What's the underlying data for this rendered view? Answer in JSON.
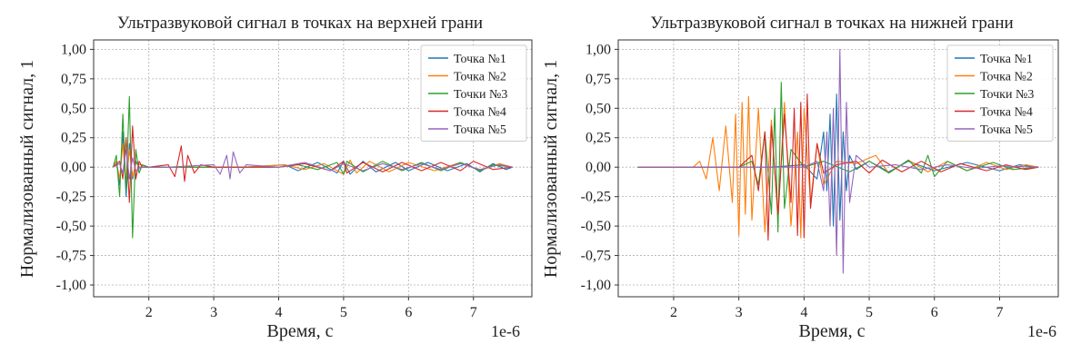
{
  "colors": {
    "series": [
      "#1f77b4",
      "#ff7f0e",
      "#2ca02c",
      "#d62728",
      "#9467bd"
    ],
    "grid": "#b0b0b0",
    "axes": "#333333",
    "legend_border": "#cccccc"
  },
  "chart_data": [
    {
      "type": "line",
      "title": "Ультразвуковой сигнал в точках на верхней грани",
      "xlabel": "Время, с",
      "ylabel": "Нормализованный сигнал, 1",
      "x_offset_label": "1e-6",
      "xlim": [
        1.15,
        7.9
      ],
      "ylim": [
        -1.1,
        1.08
      ],
      "xticks": [
        2,
        3,
        4,
        5,
        6,
        7
      ],
      "yticks": [
        -1.0,
        -0.75,
        -0.5,
        -0.25,
        0.0,
        0.25,
        0.5,
        0.75,
        1.0
      ],
      "xtick_labels": [
        "2",
        "3",
        "4",
        "5",
        "6",
        "7"
      ],
      "ytick_labels": [
        "-1,00",
        "-0,75",
        "-0,50",
        "-0,25",
        "0,00",
        "0,25",
        "0,50",
        "0,75",
        "1,00"
      ],
      "grid": true,
      "legend_position": "top-right",
      "series": [
        {
          "name": "Точка №1",
          "x": [
            1.45,
            1.5,
            1.55,
            1.6,
            1.65,
            1.7,
            1.75,
            1.8,
            1.85,
            2.0,
            2.5,
            3.0,
            3.5,
            4.1,
            4.3,
            4.6,
            4.9,
            5.0,
            5.1,
            5.3,
            5.5,
            5.8,
            6.0,
            6.3,
            6.6,
            6.9,
            7.1,
            7.3,
            7.5,
            7.6
          ],
          "values": [
            0.0,
            0.05,
            -0.15,
            0.3,
            -0.25,
            0.2,
            -0.1,
            0.05,
            0.0,
            0.0,
            0.0,
            0.0,
            0.0,
            0.02,
            -0.03,
            0.04,
            -0.05,
            0.05,
            -0.06,
            0.05,
            -0.04,
            0.04,
            -0.03,
            0.04,
            -0.03,
            0.03,
            -0.04,
            0.03,
            -0.02,
            0.0
          ]
        },
        {
          "name": "Точка №2",
          "x": [
            1.45,
            1.5,
            1.55,
            1.6,
            1.65,
            1.7,
            1.75,
            1.8,
            2.0,
            2.5,
            3.0,
            3.5,
            4.1,
            4.4,
            4.7,
            5.0,
            5.1,
            5.2,
            5.4,
            5.7,
            6.0,
            6.4,
            6.8,
            7.1,
            7.4,
            7.6
          ],
          "values": [
            0.0,
            0.05,
            -0.1,
            0.2,
            -0.15,
            0.15,
            -0.08,
            0.03,
            0.0,
            0.0,
            0.0,
            0.0,
            0.02,
            -0.02,
            0.03,
            -0.06,
            0.06,
            -0.05,
            0.05,
            -0.04,
            0.04,
            -0.03,
            0.04,
            -0.03,
            0.03,
            0.0
          ]
        },
        {
          "name": "Точки №3",
          "x": [
            1.45,
            1.5,
            1.55,
            1.6,
            1.65,
            1.7,
            1.75,
            1.8,
            1.85,
            1.9,
            2.0,
            2.5,
            3.0,
            3.5,
            4.0,
            4.3,
            4.6,
            4.9,
            5.0,
            5.05,
            5.3,
            5.6,
            5.9,
            6.2,
            6.5,
            6.8,
            7.1,
            7.3,
            7.6
          ],
          "values": [
            0.0,
            0.1,
            -0.25,
            0.45,
            -0.2,
            0.6,
            -0.6,
            0.15,
            -0.05,
            0.02,
            0.0,
            0.0,
            0.0,
            0.0,
            0.0,
            0.02,
            -0.02,
            0.04,
            -0.06,
            0.05,
            -0.04,
            0.05,
            -0.03,
            0.04,
            -0.03,
            0.04,
            -0.03,
            0.02,
            0.0
          ]
        },
        {
          "name": "Точка №4",
          "x": [
            1.45,
            1.55,
            1.6,
            1.65,
            1.7,
            1.75,
            1.8,
            1.85,
            1.9,
            2.0,
            2.3,
            2.4,
            2.5,
            2.55,
            2.6,
            2.7,
            2.8,
            3.0,
            4.0,
            4.4,
            4.8,
            5.0,
            5.05,
            5.3,
            5.6,
            5.9,
            6.2,
            6.5,
            6.8,
            7.0,
            7.3,
            7.6
          ],
          "values": [
            0.0,
            0.05,
            -0.1,
            0.25,
            -0.3,
            0.35,
            -0.1,
            0.05,
            0.0,
            0.0,
            0.02,
            -0.08,
            0.18,
            -0.12,
            0.1,
            -0.05,
            0.02,
            0.0,
            0.0,
            0.03,
            -0.03,
            0.05,
            -0.05,
            0.04,
            -0.04,
            0.04,
            -0.03,
            0.04,
            -0.03,
            0.05,
            -0.02,
            0.0
          ]
        },
        {
          "name": "Точка №5",
          "x": [
            1.45,
            1.55,
            1.6,
            1.65,
            1.7,
            1.75,
            1.8,
            1.9,
            2.0,
            2.3,
            3.0,
            3.1,
            3.2,
            3.25,
            3.3,
            3.4,
            3.5,
            4.0,
            4.4,
            4.8,
            5.0,
            5.3,
            5.6,
            5.9,
            6.2,
            6.5,
            6.8,
            7.1,
            7.4,
            7.6
          ],
          "values": [
            0.0,
            0.03,
            -0.05,
            0.15,
            -0.1,
            0.08,
            -0.03,
            0.0,
            0.0,
            0.0,
            0.02,
            -0.06,
            0.1,
            -0.1,
            0.13,
            -0.05,
            0.02,
            0.0,
            0.04,
            -0.03,
            0.03,
            -0.03,
            0.03,
            -0.02,
            0.03,
            -0.02,
            0.03,
            -0.02,
            0.02,
            0.0
          ]
        }
      ]
    },
    {
      "type": "line",
      "title": "Ультразвуковой сигнал в точках на нижней грани",
      "xlabel": "Время, с",
      "ylabel": "Нормализованный сигнал, 1",
      "x_offset_label": "1e-6",
      "xlim": [
        1.15,
        7.9
      ],
      "ylim": [
        -1.1,
        1.08
      ],
      "xticks": [
        2,
        3,
        4,
        5,
        6,
        7
      ],
      "yticks": [
        -1.0,
        -0.75,
        -0.5,
        -0.25,
        0.0,
        0.25,
        0.5,
        0.75,
        1.0
      ],
      "xtick_labels": [
        "2",
        "3",
        "4",
        "5",
        "6",
        "7"
      ],
      "ytick_labels": [
        "-1,00",
        "-0,75",
        "-0,50",
        "-0,25",
        "0,00",
        "0,25",
        "0,50",
        "0,75",
        "1,00"
      ],
      "grid": true,
      "legend_position": "top-right",
      "series": [
        {
          "name": "Точка №1",
          "x": [
            1.45,
            3.0,
            3.5,
            4.0,
            4.2,
            4.3,
            4.35,
            4.4,
            4.45,
            4.5,
            4.55,
            4.6,
            4.65,
            4.7,
            4.8,
            5.0,
            5.3,
            5.6,
            6.0,
            6.5,
            7.0,
            7.3,
            7.6
          ],
          "values": [
            0.0,
            0.0,
            0.0,
            0.02,
            -0.1,
            0.3,
            -0.2,
            0.45,
            -0.5,
            0.62,
            -0.45,
            0.3,
            -0.2,
            0.1,
            -0.02,
            0.05,
            -0.04,
            0.05,
            -0.03,
            0.04,
            -0.03,
            0.02,
            0.0
          ]
        },
        {
          "name": "Точка №2",
          "x": [
            1.45,
            2.3,
            2.4,
            2.5,
            2.6,
            2.7,
            2.8,
            2.9,
            2.95,
            3.0,
            3.05,
            3.1,
            3.15,
            3.2,
            3.3,
            3.4,
            3.5,
            3.6,
            3.7,
            3.8,
            3.9,
            3.95,
            4.0,
            4.1,
            4.2,
            4.3,
            4.5,
            4.8,
            5.1,
            5.3,
            5.6,
            5.9,
            6.2,
            6.5,
            6.8,
            7.1,
            7.4,
            7.6
          ],
          "values": [
            0.0,
            0.0,
            0.05,
            -0.1,
            0.25,
            -0.2,
            0.35,
            -0.3,
            0.45,
            -0.58,
            0.55,
            -0.4,
            0.6,
            -0.45,
            0.5,
            -0.55,
            0.4,
            -0.45,
            0.55,
            -0.5,
            0.3,
            -0.6,
            0.5,
            -0.3,
            0.2,
            -0.15,
            0.05,
            0.03,
            0.1,
            -0.05,
            0.06,
            -0.04,
            0.05,
            -0.03,
            0.04,
            -0.02,
            0.02,
            0.0
          ]
        },
        {
          "name": "Точки №3",
          "x": [
            1.45,
            3.0,
            3.2,
            3.3,
            3.4,
            3.5,
            3.55,
            3.6,
            3.65,
            3.7,
            3.8,
            4.0,
            4.3,
            4.7,
            5.0,
            5.3,
            5.6,
            5.8,
            5.9,
            6.0,
            6.2,
            6.5,
            6.9,
            7.2,
            7.6
          ],
          "values": [
            0.0,
            0.0,
            0.05,
            -0.15,
            0.3,
            -0.4,
            0.5,
            -0.55,
            0.72,
            -0.35,
            0.15,
            0.0,
            0.05,
            -0.04,
            0.05,
            -0.05,
            0.06,
            -0.05,
            0.1,
            -0.08,
            0.05,
            -0.03,
            0.04,
            -0.02,
            0.0
          ]
        },
        {
          "name": "Точка №4",
          "x": [
            1.45,
            3.0,
            3.2,
            3.3,
            3.4,
            3.45,
            3.5,
            3.6,
            3.7,
            3.8,
            3.85,
            3.9,
            3.95,
            4.0,
            4.05,
            4.1,
            4.2,
            4.3,
            4.5,
            4.8,
            5.0,
            5.2,
            5.5,
            5.8,
            6.1,
            6.4,
            6.8,
            7.1,
            7.4,
            7.6
          ],
          "values": [
            0.0,
            0.0,
            0.1,
            -0.2,
            0.3,
            -0.62,
            0.35,
            -0.4,
            0.45,
            -0.3,
            0.5,
            -0.58,
            0.55,
            -0.6,
            0.62,
            -0.35,
            0.2,
            -0.05,
            0.02,
            0.05,
            -0.05,
            0.06,
            -0.04,
            0.05,
            -0.04,
            0.03,
            -0.03,
            0.02,
            -0.02,
            0.0
          ]
        },
        {
          "name": "Точка №5",
          "x": [
            1.45,
            4.0,
            4.2,
            4.3,
            4.35,
            4.4,
            4.45,
            4.5,
            4.55,
            4.6,
            4.65,
            4.7,
            4.8,
            5.0,
            5.4,
            5.8,
            6.2,
            6.6,
            7.0,
            7.6
          ],
          "values": [
            0.0,
            0.0,
            0.05,
            -0.2,
            0.3,
            -0.5,
            0.5,
            -0.75,
            1.0,
            -0.9,
            0.55,
            -0.3,
            0.1,
            0.0,
            0.02,
            -0.02,
            0.02,
            -0.01,
            0.01,
            0.0
          ]
        }
      ]
    }
  ]
}
